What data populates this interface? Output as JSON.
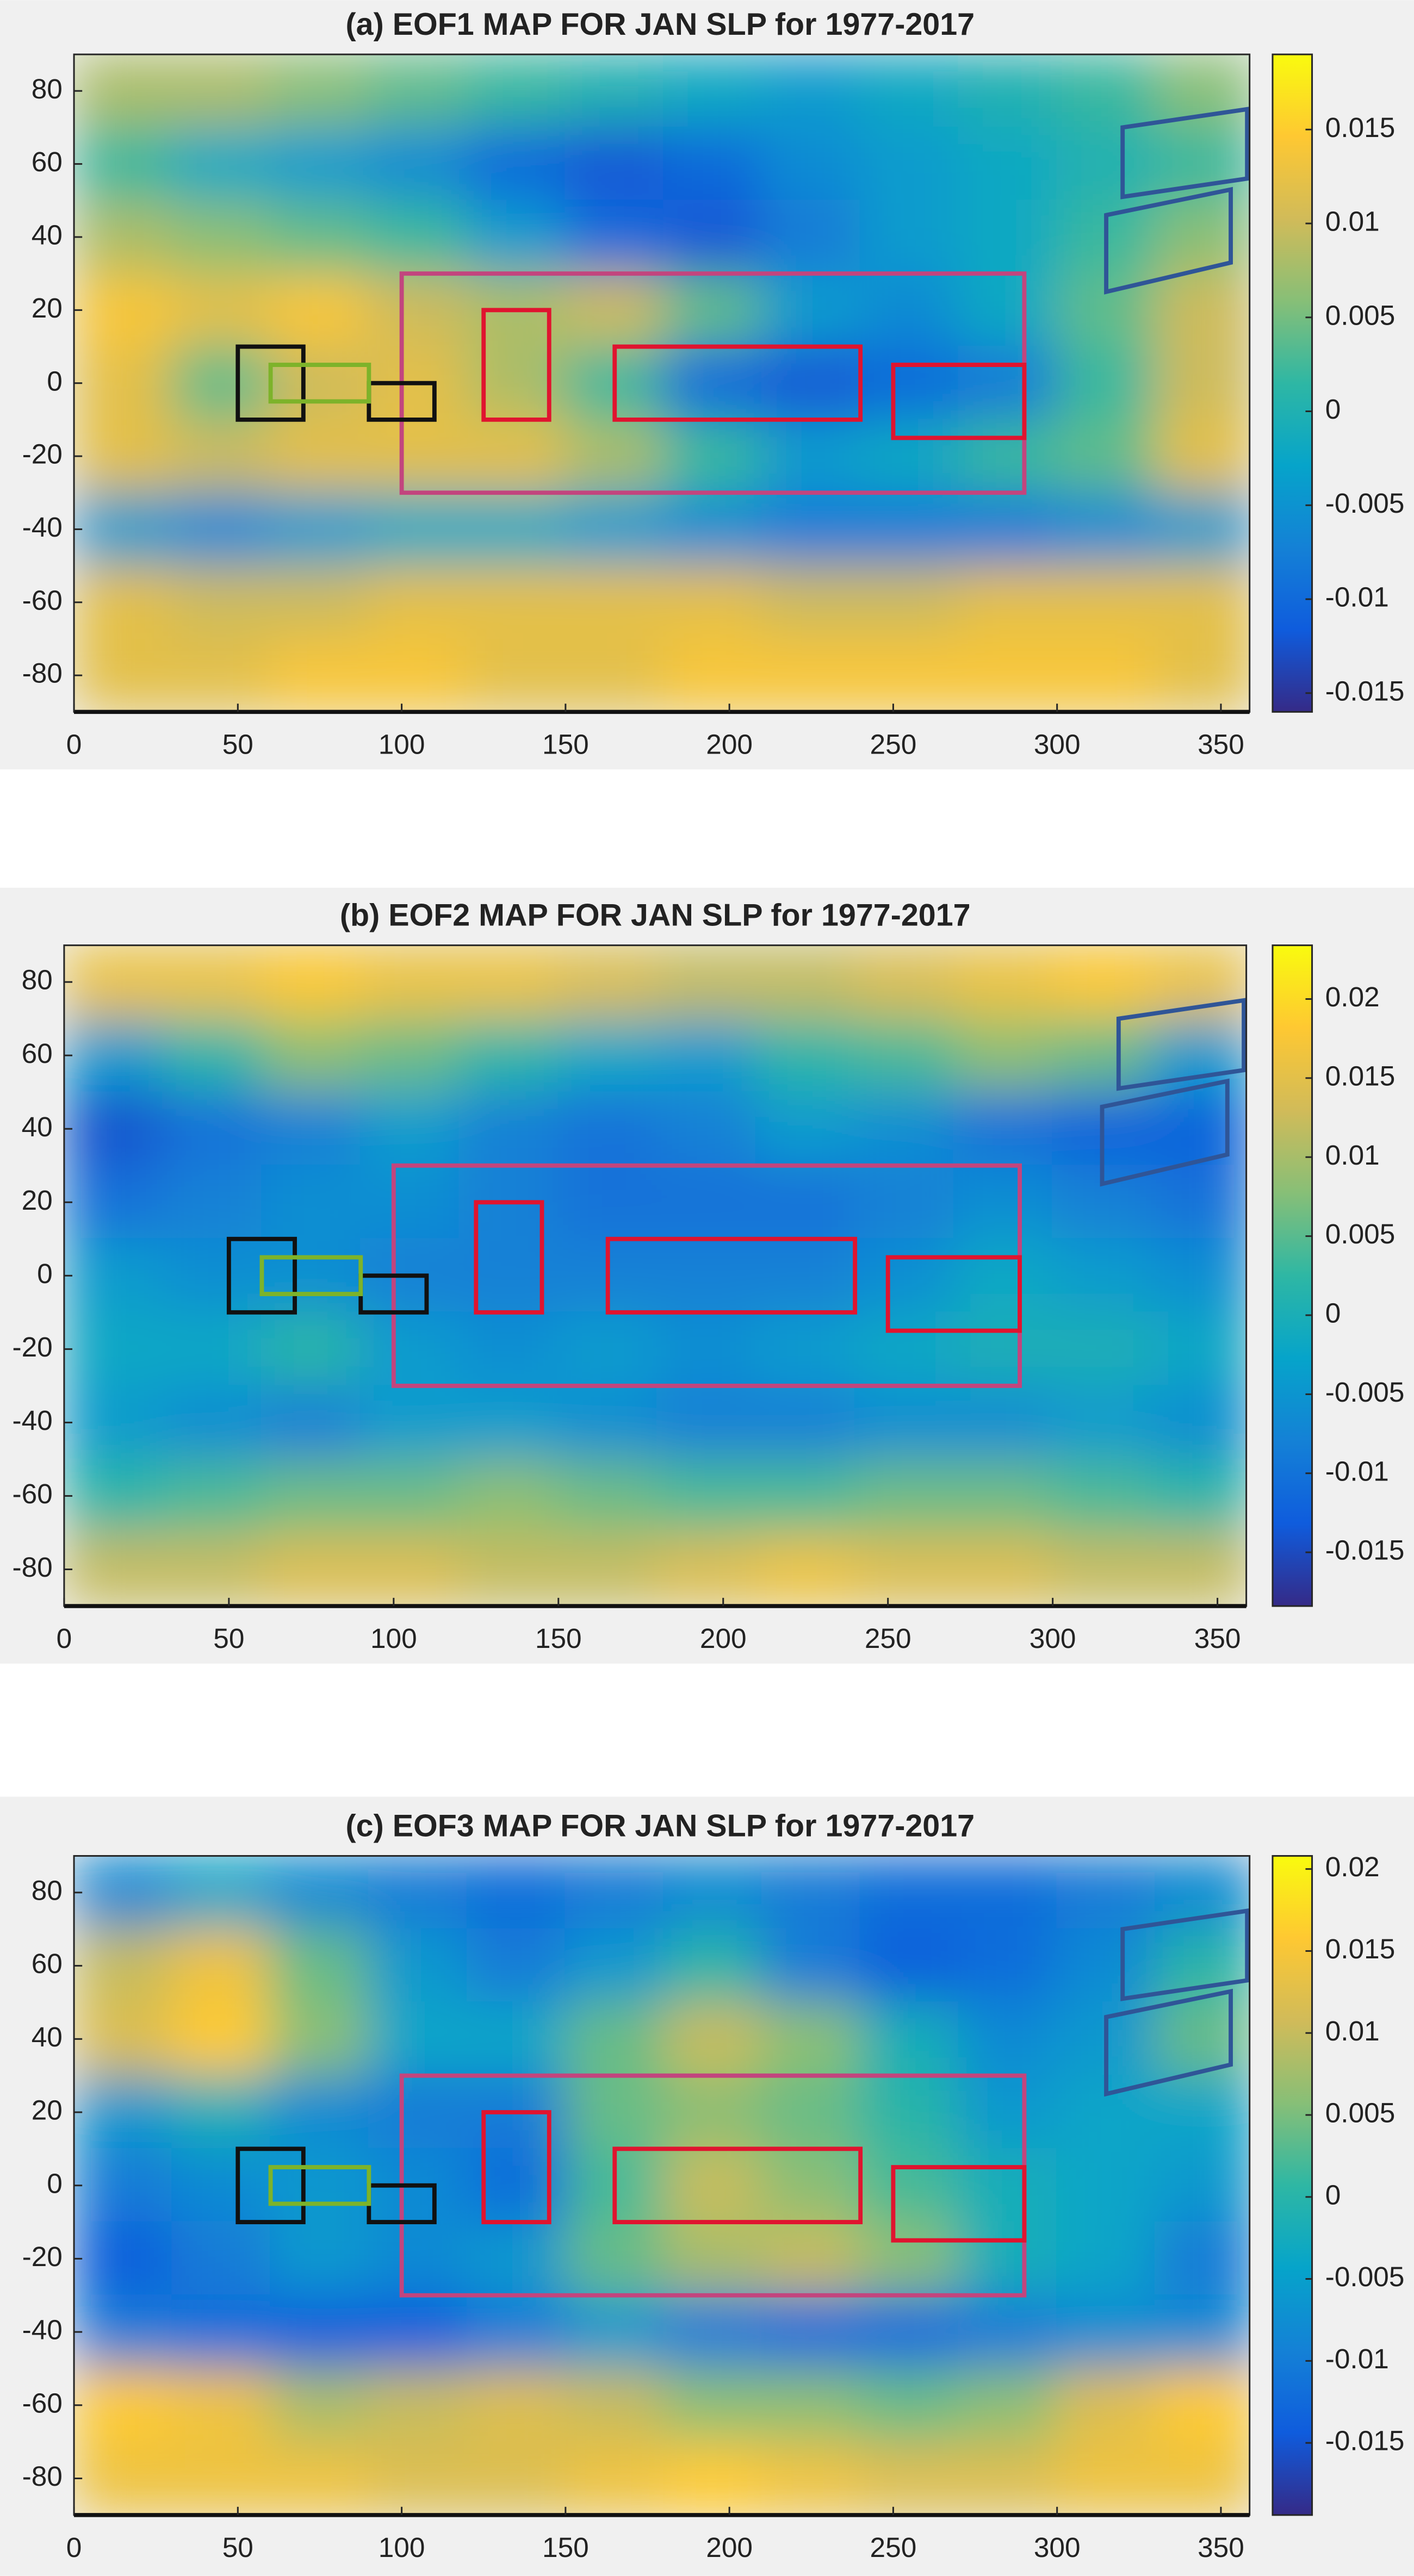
{
  "chart_data": [
    {
      "type": "heatmap",
      "title": "(a) EOF1 MAP FOR JAN SLP for 1977-2017",
      "x": [
        15,
        45,
        75,
        105,
        135,
        165,
        195,
        225,
        255,
        285,
        315,
        345
      ],
      "y": [
        80,
        60,
        40,
        20,
        0,
        -20,
        -40,
        -60,
        -80
      ],
      "z": [
        [
          0.008,
          0.008,
          0.006,
          0.004,
          0.002,
          0.0,
          -0.002,
          -0.004,
          -0.002,
          0.0,
          0.002,
          0.006
        ],
        [
          0.002,
          -0.002,
          -0.004,
          -0.006,
          -0.01,
          -0.012,
          -0.01,
          -0.006,
          -0.004,
          -0.002,
          0.0,
          0.002
        ],
        [
          0.008,
          0.006,
          0.004,
          0.002,
          -0.004,
          -0.01,
          -0.012,
          -0.008,
          -0.004,
          -0.002,
          0.002,
          0.006
        ],
        [
          0.014,
          0.012,
          0.014,
          0.01,
          0.008,
          0.01,
          0.004,
          -0.004,
          -0.006,
          -0.002,
          0.004,
          0.01
        ],
        [
          0.012,
          0.004,
          0.01,
          0.012,
          0.008,
          0.002,
          -0.01,
          -0.012,
          -0.01,
          -0.008,
          0.002,
          0.01
        ],
        [
          0.012,
          0.01,
          0.012,
          0.012,
          0.012,
          0.008,
          0.002,
          -0.004,
          -0.002,
          0.002,
          0.004,
          0.012
        ],
        [
          -0.004,
          -0.006,
          -0.004,
          -0.002,
          -0.002,
          -0.004,
          -0.006,
          -0.008,
          -0.008,
          -0.008,
          -0.006,
          -0.004
        ],
        [
          0.012,
          0.01,
          0.01,
          0.012,
          0.012,
          0.012,
          0.012,
          0.01,
          0.01,
          0.012,
          0.012,
          0.012
        ],
        [
          0.012,
          0.012,
          0.014,
          0.014,
          0.012,
          0.012,
          0.014,
          0.014,
          0.014,
          0.014,
          0.014,
          0.012
        ]
      ],
      "xlim": [
        0,
        358.75
      ],
      "ylim": [
        -90,
        90
      ],
      "xticks": [
        0,
        50,
        100,
        150,
        200,
        250,
        300,
        350
      ],
      "yticks": [
        80,
        60,
        40,
        20,
        0,
        -20,
        -40,
        -60,
        -80
      ],
      "clim": [
        -0.016,
        0.019
      ],
      "cticks": [
        0.015,
        0.01,
        0.005,
        0,
        -0.005,
        -0.01,
        -0.015
      ]
    },
    {
      "type": "heatmap",
      "title": "(b) EOF2 MAP FOR JAN SLP for 1977-2017",
      "x": [
        15,
        45,
        75,
        105,
        135,
        165,
        195,
        225,
        255,
        285,
        315,
        345
      ],
      "y": [
        80,
        60,
        40,
        20,
        0,
        -20,
        -40,
        -60,
        -80
      ],
      "z": [
        [
          0.016,
          0.016,
          0.018,
          0.016,
          0.016,
          0.014,
          0.012,
          0.012,
          0.014,
          0.016,
          0.018,
          0.016
        ],
        [
          -0.004,
          0.002,
          0.008,
          0.006,
          0.002,
          -0.002,
          -0.004,
          0.002,
          0.004,
          0.008,
          0.006,
          -0.004
        ],
        [
          -0.014,
          -0.01,
          -0.008,
          -0.004,
          -0.008,
          -0.01,
          -0.008,
          -0.004,
          -0.006,
          -0.01,
          -0.012,
          -0.012
        ],
        [
          -0.01,
          -0.008,
          -0.006,
          -0.006,
          -0.008,
          -0.01,
          -0.01,
          -0.01,
          -0.008,
          -0.006,
          -0.008,
          -0.01
        ],
        [
          -0.004,
          -0.006,
          -0.006,
          -0.008,
          -0.008,
          -0.008,
          -0.008,
          -0.008,
          -0.006,
          -0.002,
          -0.004,
          -0.006
        ],
        [
          -0.002,
          -0.002,
          0.002,
          -0.004,
          -0.006,
          -0.004,
          -0.006,
          -0.004,
          -0.002,
          0.0,
          0.0,
          -0.002
        ],
        [
          -0.004,
          -0.006,
          -0.008,
          -0.004,
          -0.004,
          -0.006,
          -0.008,
          -0.008,
          -0.006,
          -0.006,
          -0.004,
          -0.006
        ],
        [
          0.002,
          0.004,
          0.006,
          0.006,
          0.008,
          0.006,
          0.004,
          0.004,
          0.006,
          0.006,
          0.004,
          0.002
        ],
        [
          0.012,
          0.012,
          0.014,
          0.014,
          0.012,
          0.012,
          0.014,
          0.016,
          0.014,
          0.014,
          0.012,
          0.012
        ]
      ],
      "xlim": [
        0,
        358.75
      ],
      "ylim": [
        -90,
        90
      ],
      "xticks": [
        0,
        50,
        100,
        150,
        200,
        250,
        300,
        350
      ],
      "yticks": [
        80,
        60,
        40,
        20,
        0,
        -20,
        -40,
        -60,
        -80
      ],
      "clim": [
        -0.0184,
        0.0234
      ],
      "cticks": [
        0.02,
        0.015,
        0.01,
        0.005,
        0,
        -0.005,
        -0.01,
        -0.015
      ]
    },
    {
      "type": "heatmap",
      "title": "(c) EOF3 MAP FOR JAN SLP for 1977-2017",
      "x": [
        15,
        45,
        75,
        105,
        135,
        165,
        195,
        225,
        255,
        285,
        315,
        345
      ],
      "y": [
        80,
        60,
        40,
        20,
        0,
        -20,
        -40,
        -60,
        -80
      ],
      "z": [
        [
          -0.008,
          -0.004,
          -0.008,
          -0.01,
          -0.012,
          -0.01,
          -0.008,
          -0.01,
          -0.012,
          -0.012,
          -0.01,
          -0.008
        ],
        [
          0.01,
          0.014,
          0.004,
          -0.006,
          -0.01,
          -0.006,
          0.0,
          -0.01,
          -0.014,
          -0.012,
          -0.008,
          0.0
        ],
        [
          0.012,
          0.016,
          0.006,
          -0.004,
          -0.004,
          0.004,
          0.01,
          0.006,
          -0.002,
          -0.008,
          -0.006,
          0.004
        ],
        [
          -0.006,
          -0.002,
          -0.008,
          -0.01,
          -0.01,
          0.004,
          0.006,
          0.004,
          0.0,
          -0.006,
          -0.004,
          -0.004
        ],
        [
          -0.01,
          -0.008,
          -0.006,
          -0.008,
          -0.012,
          0.002,
          0.01,
          0.006,
          0.002,
          -0.002,
          -0.004,
          -0.006
        ],
        [
          -0.014,
          -0.01,
          -0.006,
          -0.008,
          -0.006,
          0.004,
          0.008,
          0.01,
          0.006,
          -0.002,
          -0.004,
          -0.01
        ],
        [
          -0.01,
          -0.012,
          -0.014,
          -0.014,
          -0.01,
          -0.006,
          -0.01,
          -0.012,
          -0.012,
          -0.01,
          -0.008,
          -0.008
        ],
        [
          0.016,
          0.014,
          0.008,
          0.01,
          0.012,
          0.01,
          0.006,
          0.006,
          0.004,
          0.006,
          0.012,
          0.016
        ],
        [
          0.014,
          0.014,
          0.014,
          0.012,
          0.012,
          0.014,
          0.016,
          0.014,
          0.012,
          0.012,
          0.014,
          0.014
        ]
      ],
      "xlim": [
        0,
        358.75
      ],
      "ylim": [
        -90,
        90
      ],
      "xticks": [
        0,
        50,
        100,
        150,
        200,
        250,
        300,
        350
      ],
      "yticks": [
        80,
        60,
        40,
        20,
        0,
        -20,
        -40,
        -60,
        -80
      ],
      "clim": [
        -0.0194,
        0.0208
      ],
      "cticks": [
        0.02,
        0.015,
        0.01,
        0.005,
        0,
        -0.005,
        -0.01,
        -0.015
      ]
    }
  ],
  "colormap": [
    "#352a87",
    "#0f5cdd",
    "#1481d6",
    "#06a4ca",
    "#2eb7a4",
    "#87bf77",
    "#d1bb59",
    "#fec832",
    "#f9fb0e"
  ],
  "regions": [
    {
      "lon": [
        100,
        290,
        290,
        100
      ],
      "lat": [
        30,
        30,
        -30,
        -30
      ],
      "color": "#c2457e"
    },
    {
      "lon": [
        125,
        145,
        145,
        125
      ],
      "lat": [
        20,
        20,
        -10,
        -10
      ],
      "color": "#e0142f"
    },
    {
      "lon": [
        165,
        240,
        240,
        165
      ],
      "lat": [
        10,
        10,
        -10,
        -10
      ],
      "color": "#e0142f"
    },
    {
      "lon": [
        250,
        290,
        290,
        250
      ],
      "lat": [
        5,
        5,
        -15,
        -15
      ],
      "color": "#e0142f"
    },
    {
      "lon": [
        50,
        70,
        70,
        50
      ],
      "lat": [
        10,
        10,
        -10,
        -10
      ],
      "color": "#111111"
    },
    {
      "lon": [
        90,
        110,
        110,
        90
      ],
      "lat": [
        0,
        0,
        -10,
        -10
      ],
      "color": "#111111"
    },
    {
      "lon": [
        60,
        90,
        90,
        60
      ],
      "lat": [
        5,
        5,
        -5,
        -5
      ],
      "color": "#7db32a"
    },
    {
      "lon": [
        320,
        358,
        358,
        320
      ],
      "lat": [
        70,
        75,
        56,
        51
      ],
      "color": "#2f5597"
    },
    {
      "lon": [
        315,
        353,
        353,
        315
      ],
      "lat": [
        46,
        53,
        33,
        25
      ],
      "color": "#2f5597"
    }
  ]
}
